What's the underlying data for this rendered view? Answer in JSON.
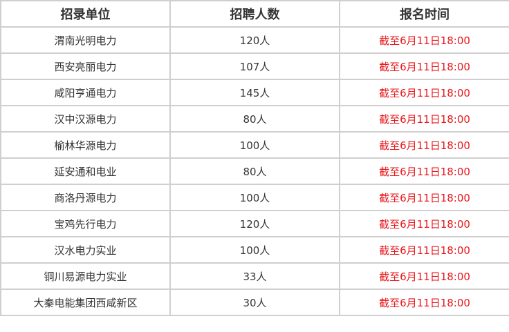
{
  "table": {
    "headers": [
      "招录单位",
      "招聘人数",
      "报名时间"
    ],
    "rows": [
      [
        "渭南光明电力",
        "120人",
        "截至6月11日18:00"
      ],
      [
        "西安亮丽电力",
        "107人",
        "截至6月11日18:00"
      ],
      [
        "咸阳亨通电力",
        "145人",
        "截至6月11日18:00"
      ],
      [
        "汉中汉源电力",
        "80人",
        "截至6月11日18:00"
      ],
      [
        "榆林华源电力",
        "100人",
        "截至6月11日18:00"
      ],
      [
        "延安通和电业",
        "80人",
        "截至6月11日18:00"
      ],
      [
        "商洛丹源电力",
        "100人",
        "截至6月11日18:00"
      ],
      [
        "宝鸡先行电力",
        "120人",
        "截至6月11日18:00"
      ],
      [
        "汉水电力实业",
        "100人",
        "截至6月11日18:00"
      ],
      [
        "铜川易源电力实业",
        "33人",
        "截至6月11日18:00"
      ],
      [
        "大秦电能集团西咸新区",
        "30人",
        "截至6月11日18:00"
      ]
    ],
    "colors": {
      "deadline": "#e8161b",
      "text": "#333333",
      "border": "#cfcfcf"
    }
  }
}
